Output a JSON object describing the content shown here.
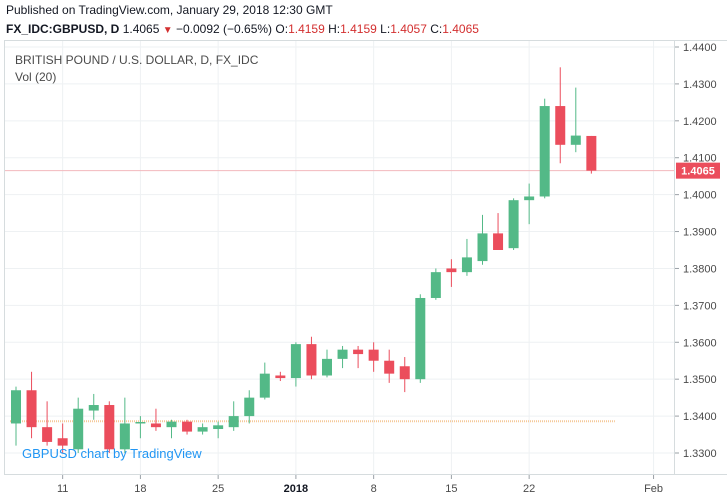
{
  "header": {
    "published": "Published on TradingView.com, January 29, 2018 12:30 GMT",
    "symbol": "FX_IDC:GBPUSD, D",
    "last": "1.4065",
    "change": "−0.0092 (−0.65%)",
    "o_label": "O:",
    "o_value": "1.4159",
    "h_label": "H:",
    "h_value": "1.4159",
    "l_label": "L:",
    "l_value": "1.4057",
    "c_label": "C:",
    "c_value": "1.4065"
  },
  "chart_title": "BRITISH POUND / U.S. DOLLAR, D, FX_IDC",
  "volume_label": "Vol (20)",
  "brand": "GBPUSD chart by TradingView",
  "last_price_label": "1.4065",
  "colors": {
    "up": "#53b987",
    "down": "#eb4d5c",
    "last_line": "#f2b8bd",
    "last_bg": "#eb4d5c",
    "grid": "#eef1f3",
    "ma_line": "#f5c99a"
  },
  "chart_data": {
    "type": "candlestick",
    "title": "BRITISH POUND / U.S. DOLLAR, D, FX_IDC",
    "ylim": [
      1.3245,
      1.4405
    ],
    "y_ticks": [
      "1.4400",
      "1.4300",
      "1.4200",
      "1.4100",
      "1.4000",
      "1.3900",
      "1.3800",
      "1.3700",
      "1.3600",
      "1.3500",
      "1.3400",
      "1.3300"
    ],
    "x_ticks": [
      {
        "label": "11",
        "index": 3
      },
      {
        "label": "18",
        "index": 8
      },
      {
        "label": "25",
        "index": 13
      },
      {
        "label": "2018",
        "index": 18,
        "bold": true
      },
      {
        "label": "8",
        "index": 23
      },
      {
        "label": "15",
        "index": 28
      },
      {
        "label": "22",
        "index": 33
      },
      {
        "label": "Feb",
        "index": 41
      }
    ],
    "last_price": 1.4065,
    "ma_level": 1.3386,
    "ma_range": [
      0,
      38
    ],
    "candles": [
      {
        "o": 1.338,
        "h": 1.348,
        "l": 1.332,
        "c": 1.347
      },
      {
        "o": 1.347,
        "h": 1.352,
        "l": 1.334,
        "c": 1.337
      },
      {
        "o": 1.337,
        "h": 1.344,
        "l": 1.332,
        "c": 1.333
      },
      {
        "o": 1.334,
        "h": 1.338,
        "l": 1.33,
        "c": 1.332
      },
      {
        "o": 1.331,
        "h": 1.345,
        "l": 1.33,
        "c": 1.342
      },
      {
        "o": 1.3415,
        "h": 1.346,
        "l": 1.339,
        "c": 1.343
      },
      {
        "o": 1.343,
        "h": 1.344,
        "l": 1.33,
        "c": 1.331
      },
      {
        "o": 1.331,
        "h": 1.345,
        "l": 1.33,
        "c": 1.338
      },
      {
        "o": 1.338,
        "h": 1.34,
        "l": 1.334,
        "c": 1.3384
      },
      {
        "o": 1.338,
        "h": 1.342,
        "l": 1.336,
        "c": 1.337
      },
      {
        "o": 1.337,
        "h": 1.339,
        "l": 1.334,
        "c": 1.3385
      },
      {
        "o": 1.3385,
        "h": 1.339,
        "l": 1.335,
        "c": 1.3358
      },
      {
        "o": 1.3358,
        "h": 1.338,
        "l": 1.335,
        "c": 1.337
      },
      {
        "o": 1.3365,
        "h": 1.3385,
        "l": 1.334,
        "c": 1.3375
      },
      {
        "o": 1.337,
        "h": 1.344,
        "l": 1.336,
        "c": 1.34
      },
      {
        "o": 1.34,
        "h": 1.347,
        "l": 1.338,
        "c": 1.345
      },
      {
        "o": 1.345,
        "h": 1.3545,
        "l": 1.3445,
        "c": 1.3515
      },
      {
        "o": 1.351,
        "h": 1.352,
        "l": 1.3495,
        "c": 1.3503
      },
      {
        "o": 1.3503,
        "h": 1.36,
        "l": 1.348,
        "c": 1.3595
      },
      {
        "o": 1.3595,
        "h": 1.3615,
        "l": 1.35,
        "c": 1.351
      },
      {
        "o": 1.351,
        "h": 1.358,
        "l": 1.3505,
        "c": 1.3555
      },
      {
        "o": 1.3555,
        "h": 1.359,
        "l": 1.353,
        "c": 1.358
      },
      {
        "o": 1.358,
        "h": 1.359,
        "l": 1.353,
        "c": 1.3568
      },
      {
        "o": 1.358,
        "h": 1.36,
        "l": 1.352,
        "c": 1.355
      },
      {
        "o": 1.355,
        "h": 1.358,
        "l": 1.349,
        "c": 1.3515
      },
      {
        "o": 1.3535,
        "h": 1.356,
        "l": 1.3465,
        "c": 1.35
      },
      {
        "o": 1.35,
        "h": 1.373,
        "l": 1.349,
        "c": 1.372
      },
      {
        "o": 1.372,
        "h": 1.38,
        "l": 1.3715,
        "c": 1.379
      },
      {
        "o": 1.38,
        "h": 1.3825,
        "l": 1.375,
        "c": 1.379
      },
      {
        "o": 1.379,
        "h": 1.388,
        "l": 1.378,
        "c": 1.383
      },
      {
        "o": 1.382,
        "h": 1.3945,
        "l": 1.381,
        "c": 1.3895
      },
      {
        "o": 1.3895,
        "h": 1.395,
        "l": 1.385,
        "c": 1.385
      },
      {
        "o": 1.3855,
        "h": 1.399,
        "l": 1.385,
        "c": 1.3985
      },
      {
        "o": 1.3985,
        "h": 1.403,
        "l": 1.392,
        "c": 1.3995
      },
      {
        "o": 1.3995,
        "h": 1.426,
        "l": 1.399,
        "c": 1.424
      },
      {
        "o": 1.424,
        "h": 1.4345,
        "l": 1.4085,
        "c": 1.4135
      },
      {
        "o": 1.4135,
        "h": 1.429,
        "l": 1.4115,
        "c": 1.416
      },
      {
        "o": 1.4159,
        "h": 1.4159,
        "l": 1.4057,
        "c": 1.4065
      }
    ]
  }
}
